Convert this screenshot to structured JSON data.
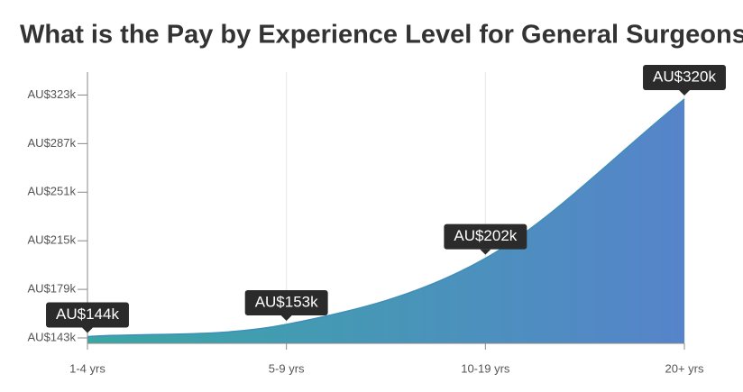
{
  "chart_data": {
    "type": "area",
    "title": "What is the Pay by Experience Level for General Surgeons?",
    "categories": [
      "1-4 yrs",
      "5-9 yrs",
      "10-19 yrs",
      "20+ yrs"
    ],
    "values": [
      144000,
      153000,
      202000,
      320000
    ],
    "value_labels": [
      "AU$144k",
      "AU$153k",
      "AU$202k",
      "AU$320k"
    ],
    "colors": [
      "#39a7a5",
      "#5684ca"
    ],
    "ylim": [
      139000,
      340000
    ],
    "yticks": [
      {
        "value": 143000,
        "label": "AU$143k"
      },
      {
        "value": 179000,
        "label": "AU$179k"
      },
      {
        "value": 215000,
        "label": "AU$215k"
      },
      {
        "value": 251000,
        "label": "AU$251k"
      },
      {
        "value": 287000,
        "label": "AU$287k"
      },
      {
        "value": 323000,
        "label": "AU$323k"
      }
    ],
    "grid": true
  }
}
